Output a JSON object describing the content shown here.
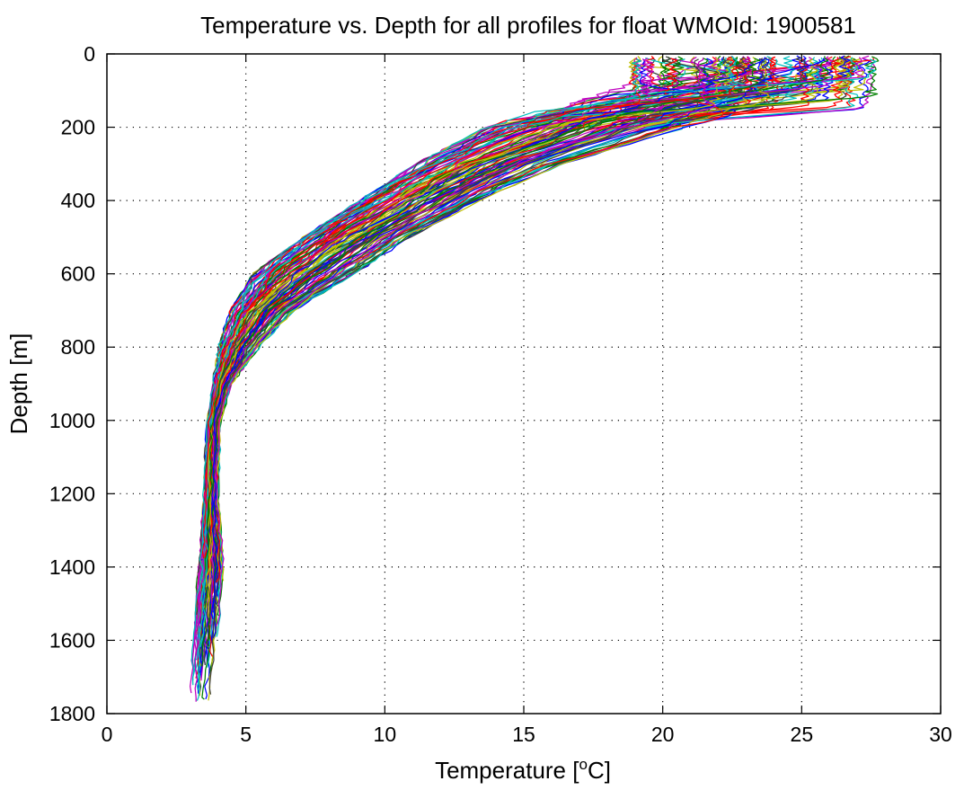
{
  "chart_data": {
    "type": "line",
    "title": "Temperature vs. Depth for all profiles for float WMOId: 1900581",
    "xlabel_main": "Temperature [",
    "xlabel_sup": "o",
    "xlabel_tail": "C]",
    "ylabel": "Depth [m]",
    "xlim": [
      0,
      30
    ],
    "ylim": [
      0,
      1800
    ],
    "y_reversed": true,
    "xticks": [
      0,
      5,
      10,
      15,
      20,
      25,
      30
    ],
    "yticks": [
      0,
      200,
      400,
      600,
      800,
      1000,
      1200,
      1400,
      1600,
      1800
    ],
    "grid": true,
    "legend": "none",
    "profile_count": 110,
    "series_colors": [
      "#0000ff",
      "#008000",
      "#ff0000",
      "#00bfbf",
      "#bf00bf",
      "#bfbf00",
      "#404040"
    ],
    "envelope": {
      "depth": [
        0,
        50,
        100,
        150,
        200,
        300,
        400,
        500,
        600,
        700,
        800,
        900,
        1000,
        1200,
        1400,
        1600,
        1780
      ],
      "temperature_min": [
        19.0,
        19.0,
        17.5,
        15.5,
        13.5,
        11.0,
        9.0,
        7.0,
        5.2,
        4.4,
        4.0,
        3.8,
        3.6,
        3.5,
        3.3,
        3.1,
        3.0
      ],
      "temperature_max": [
        27.8,
        27.5,
        26.5,
        23.5,
        21.0,
        16.5,
        13.5,
        11.0,
        9.0,
        6.8,
        5.5,
        4.5,
        4.1,
        4.0,
        4.2,
        4.0,
        3.8
      ]
    }
  }
}
